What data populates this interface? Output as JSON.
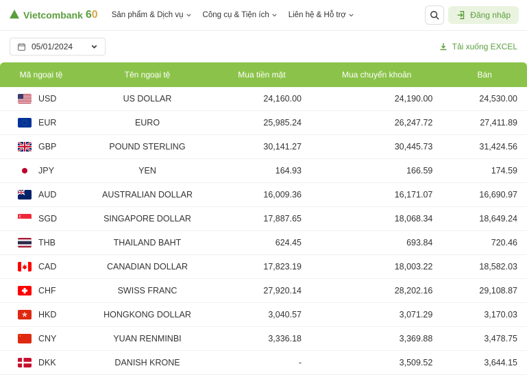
{
  "header": {
    "logo_text": "Vietcombank",
    "nav": [
      {
        "label": "Sản phẩm & Dịch vụ"
      },
      {
        "label": "Công cụ & Tiện ích"
      },
      {
        "label": "Liên hệ & Hỗ trợ"
      }
    ],
    "login_label": "Đăng nhập"
  },
  "toolbar": {
    "date": "05/01/2024",
    "download_label": "Tải xuống EXCEL"
  },
  "table": {
    "columns": [
      "Mã ngoại tệ",
      "Tên ngoại tệ",
      "Mua tiền mặt",
      "Mua chuyển khoản",
      "Bán"
    ],
    "rows": [
      {
        "code": "USD",
        "name": "US DOLLAR",
        "cash": "24,160.00",
        "transfer": "24,190.00",
        "sell": "24,530.00",
        "flag": "us"
      },
      {
        "code": "EUR",
        "name": "EURO",
        "cash": "25,985.24",
        "transfer": "26,247.72",
        "sell": "27,411.89",
        "flag": "eu"
      },
      {
        "code": "GBP",
        "name": "POUND STERLING",
        "cash": "30,141.27",
        "transfer": "30,445.73",
        "sell": "31,424.56",
        "flag": "gb"
      },
      {
        "code": "JPY",
        "name": "YEN",
        "cash": "164.93",
        "transfer": "166.59",
        "sell": "174.59",
        "flag": "jp"
      },
      {
        "code": "AUD",
        "name": "AUSTRALIAN DOLLAR",
        "cash": "16,009.36",
        "transfer": "16,171.07",
        "sell": "16,690.97",
        "flag": "au"
      },
      {
        "code": "SGD",
        "name": "SINGAPORE DOLLAR",
        "cash": "17,887.65",
        "transfer": "18,068.34",
        "sell": "18,649.24",
        "flag": "sg"
      },
      {
        "code": "THB",
        "name": "THAILAND BAHT",
        "cash": "624.45",
        "transfer": "693.84",
        "sell": "720.46",
        "flag": "th"
      },
      {
        "code": "CAD",
        "name": "CANADIAN DOLLAR",
        "cash": "17,823.19",
        "transfer": "18,003.22",
        "sell": "18,582.03",
        "flag": "ca"
      },
      {
        "code": "CHF",
        "name": "SWISS FRANC",
        "cash": "27,920.14",
        "transfer": "28,202.16",
        "sell": "29,108.87",
        "flag": "ch"
      },
      {
        "code": "HKD",
        "name": "HONGKONG DOLLAR",
        "cash": "3,040.57",
        "transfer": "3,071.29",
        "sell": "3,170.03",
        "flag": "hk"
      },
      {
        "code": "CNY",
        "name": "YUAN RENMINBI",
        "cash": "3,336.18",
        "transfer": "3,369.88",
        "sell": "3,478.75",
        "flag": "cn"
      },
      {
        "code": "DKK",
        "name": "DANISH KRONE",
        "cash": "-",
        "transfer": "3,509.52",
        "sell": "3,644.15",
        "flag": "dk"
      }
    ]
  },
  "colors": {
    "brand_green": "#5a9e3e",
    "header_green": "#8bc34a",
    "login_bg": "#eaf3df"
  }
}
